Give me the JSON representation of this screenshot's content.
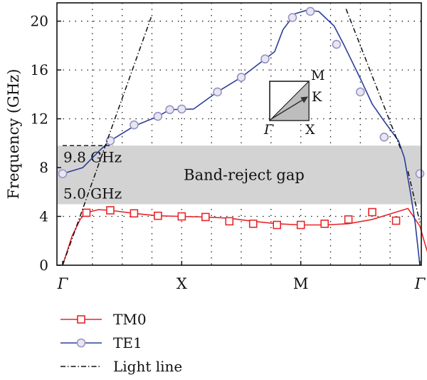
{
  "chart_data": {
    "type": "line",
    "ylabel": "Frequency (GHz)",
    "ylim": [
      0,
      21.5
    ],
    "yticks": [
      "0",
      "4",
      "8",
      "12",
      "16",
      "20"
    ],
    "ytick_values": [
      0,
      4,
      8,
      12,
      16,
      20
    ],
    "xlim": [
      0,
      3
    ],
    "xticks": [
      "Γ",
      "X",
      "M",
      "Γ"
    ],
    "xtick_values": [
      0,
      1,
      2,
      3
    ],
    "grid": "dotted",
    "legend_position": "below",
    "series": [
      {
        "name": "TM0",
        "color": "#e8262a",
        "marker": "square",
        "line": [
          [
            0,
            0
          ],
          [
            0.08,
            2.4
          ],
          [
            0.15,
            3.8
          ],
          [
            0.2,
            4.3
          ],
          [
            0.3,
            4.55
          ],
          [
            0.4,
            4.5
          ],
          [
            0.6,
            4.25
          ],
          [
            0.8,
            4.05
          ],
          [
            1.0,
            4.0
          ],
          [
            1.2,
            3.95
          ],
          [
            1.4,
            3.85
          ],
          [
            1.6,
            3.6
          ],
          [
            1.8,
            3.4
          ],
          [
            2.0,
            3.3
          ],
          [
            2.2,
            3.3
          ],
          [
            2.4,
            3.4
          ],
          [
            2.6,
            3.75
          ],
          [
            2.8,
            4.35
          ],
          [
            2.9,
            4.65
          ],
          [
            3.0,
            3.2
          ],
          [
            3.05,
            1.5
          ],
          [
            3.1,
            0
          ]
        ],
        "markers": [
          [
            0.2,
            4.3
          ],
          [
            0.4,
            4.5
          ],
          [
            0.6,
            4.25
          ],
          [
            0.8,
            4.05
          ],
          [
            1.0,
            4.0
          ],
          [
            1.2,
            3.95
          ],
          [
            1.4,
            3.6
          ],
          [
            1.6,
            3.4
          ],
          [
            1.8,
            3.3
          ],
          [
            2.0,
            3.3
          ],
          [
            2.2,
            3.4
          ],
          [
            2.4,
            3.75
          ],
          [
            2.6,
            4.35
          ],
          [
            2.8,
            3.65
          ]
        ]
      },
      {
        "name": "TE1",
        "color": "#2c3e9a",
        "marker": "circle",
        "line": [
          [
            0,
            7.5
          ],
          [
            0.17,
            8.0
          ],
          [
            0.3,
            9.3
          ],
          [
            0.4,
            10.2
          ],
          [
            0.6,
            11.4
          ],
          [
            0.8,
            12.2
          ],
          [
            0.9,
            12.75
          ],
          [
            1.1,
            12.8
          ],
          [
            1.3,
            14.2
          ],
          [
            1.5,
            15.4
          ],
          [
            1.7,
            16.9
          ],
          [
            1.78,
            17.5
          ],
          [
            1.85,
            19.3
          ],
          [
            1.95,
            20.6
          ],
          [
            2.05,
            20.9
          ],
          [
            2.15,
            20.8
          ],
          [
            2.28,
            19.6
          ],
          [
            2.36,
            18.1
          ],
          [
            2.5,
            15.3
          ],
          [
            2.6,
            13.2
          ],
          [
            2.7,
            11.8
          ],
          [
            2.82,
            10.2
          ],
          [
            2.87,
            8.8
          ],
          [
            2.92,
            6.0
          ],
          [
            2.96,
            3.5
          ],
          [
            3.0,
            0
          ]
        ],
        "markers": [
          [
            0,
            7.5
          ],
          [
            0.4,
            10.2
          ],
          [
            0.6,
            11.5
          ],
          [
            0.8,
            12.2
          ],
          [
            0.9,
            12.75
          ],
          [
            1.0,
            12.8
          ],
          [
            1.3,
            14.2
          ],
          [
            1.5,
            15.4
          ],
          [
            1.7,
            16.9
          ],
          [
            1.93,
            20.3
          ],
          [
            2.08,
            20.8
          ],
          [
            2.3,
            18.1
          ],
          [
            2.5,
            14.2
          ],
          [
            2.7,
            10.5
          ],
          [
            3.0,
            7.5
          ]
        ]
      },
      {
        "name": "Light line",
        "color": "#111111",
        "style": "dash-dot",
        "segments": [
          [
            [
              0,
              0
            ],
            [
              0.75,
              20.5
            ]
          ],
          [
            [
              2.38,
              21.0
            ],
            [
              2.84,
              9.5
            ]
          ],
          [
            [
              2.9,
              7.7
            ],
            [
              3.0,
              3.5
            ]
          ]
        ]
      }
    ],
    "band_gap": {
      "label": "Band-reject gap",
      "upper": 9.8,
      "lower": 5.0,
      "upper_label": "9.8 GHz",
      "lower_label": "5.0 GHz",
      "color": "#d3d3d3"
    },
    "reference_line": {
      "y": 9.8,
      "x_from": 0,
      "x_to": 0.42,
      "style": "dashed"
    },
    "inset": {
      "label_m": "M",
      "label_k": "K",
      "label_gamma": "Γ",
      "label_x": "X"
    }
  }
}
